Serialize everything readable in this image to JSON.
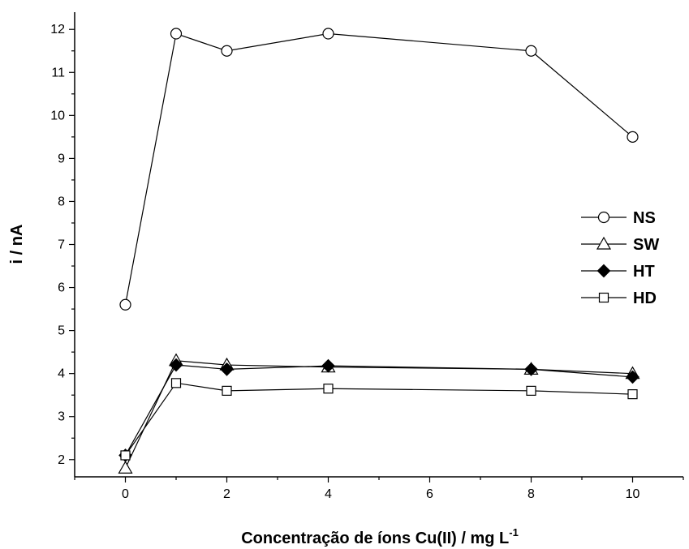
{
  "chart_data": {
    "type": "line",
    "title": "",
    "xlabel": "Concentração de íons Cu(II) / mg L",
    "xlabel_superscript": "-1",
    "ylabel": "i / nA",
    "xlim": [
      -1,
      11
    ],
    "ylim": [
      1.6,
      12.4
    ],
    "x_ticks": [
      0,
      2,
      4,
      6,
      8,
      10
    ],
    "y_ticks": [
      2,
      3,
      4,
      5,
      6,
      7,
      8,
      9,
      10,
      11,
      12
    ],
    "grid": false,
    "legend_position": "right",
    "x": [
      0,
      1,
      2,
      4,
      8,
      10
    ],
    "series": [
      {
        "name": "NS",
        "marker": "open-circle",
        "values": [
          5.6,
          11.9,
          11.5,
          11.9,
          11.5,
          9.5
        ]
      },
      {
        "name": "SW",
        "marker": "open-triangle",
        "values": [
          1.8,
          4.3,
          4.2,
          4.15,
          4.1,
          4.0
        ]
      },
      {
        "name": "HT",
        "marker": "filled-diamond",
        "values": [
          2.1,
          4.2,
          4.1,
          4.18,
          4.1,
          3.92
        ]
      },
      {
        "name": "HD",
        "marker": "open-square",
        "values": [
          2.1,
          3.78,
          3.6,
          3.65,
          3.6,
          3.52
        ]
      }
    ],
    "colors": {
      "line": "#000000",
      "marker_fill_open": "#ffffff",
      "marker_fill_filled": "#000000"
    }
  }
}
